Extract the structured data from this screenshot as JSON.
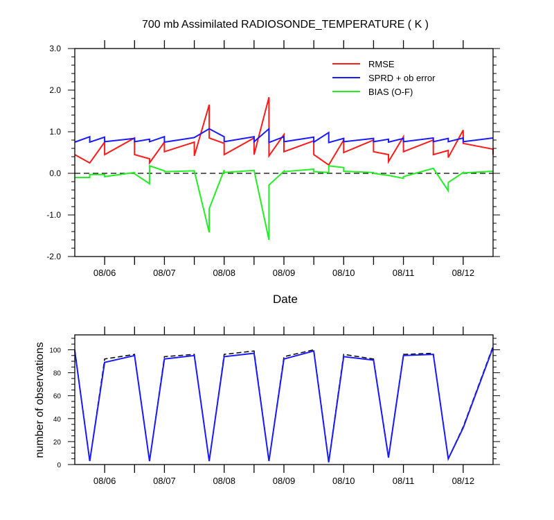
{
  "colors": {
    "rmse": "#ff1a1a",
    "spread": "#1a1aff",
    "bias": "#22ee22",
    "obs_possible": "#000000",
    "obs_used": "#1a1aff",
    "axis": "#000000"
  },
  "chart_data": [
    {
      "type": "line",
      "title": "700 mb Assimilated RADIOSONDE_TEMPERATURE ( K )",
      "xlabel": "Date",
      "ylabel": "",
      "xlim": [
        "08/05 12:00",
        "08/12 12:00"
      ],
      "ylim": [
        -2.0,
        3.0
      ],
      "x_ticks": [
        "08/06",
        "08/07",
        "08/08",
        "08/09",
        "08/10",
        "08/11",
        "08/12"
      ],
      "y_ticks": [
        "-2.0",
        "-1.0",
        "0.0",
        "1.0",
        "2.0",
        "3.0"
      ],
      "zero_line": "dashed",
      "legend_position": "top-right",
      "series": [
        {
          "name": "RMSE",
          "color_key": "rmse",
          "x": [
            "08/05 12:00",
            "08/05 18:00",
            "08/06 00:00",
            "08/06 00:00",
            "08/06 12:00",
            "08/06 12:00",
            "08/06 18:00",
            "08/06 18:00",
            "08/07 00:00",
            "08/07 00:00",
            "08/07 12:00",
            "08/07 12:00",
            "08/07 18:00",
            "08/07 18:00",
            "08/08 00:00",
            "08/08 00:00",
            "08/08 12:00",
            "08/08 12:00",
            "08/08 18:00",
            "08/08 18:00",
            "08/09 00:00",
            "08/09 00:00",
            "08/09 12:00",
            "08/09 12:00",
            "08/09 18:00",
            "08/10 00:00",
            "08/10 00:00",
            "08/10 12:00",
            "08/10 12:00",
            "08/10 18:00",
            "08/10 18:00",
            "08/11 00:00",
            "08/11 00:00",
            "08/11 12:00",
            "08/11 12:00",
            "08/11 18:00",
            "08/11 18:00",
            "08/12 00:00",
            "08/12 00:00",
            "08/12 12:00",
            "08/12 12:00"
          ],
          "y": [
            0.45,
            0.25,
            0.75,
            0.45,
            0.85,
            0.45,
            0.35,
            0.25,
            0.75,
            0.52,
            0.75,
            0.42,
            1.65,
            0.85,
            0.72,
            0.45,
            0.85,
            0.45,
            1.83,
            0.42,
            0.93,
            0.52,
            0.78,
            0.45,
            0.2,
            0.8,
            0.5,
            0.8,
            0.52,
            0.45,
            0.28,
            0.88,
            0.52,
            0.8,
            0.45,
            0.55,
            0.38,
            1.04,
            0.72,
            0.58,
            0.45
          ]
        },
        {
          "name": "SPRD + ob error",
          "color_key": "spread",
          "x": [
            "08/05 12:00",
            "08/05 18:00",
            "08/05 18:00",
            "08/06 00:00",
            "08/06 00:00",
            "08/06 12:00",
            "08/06 12:00",
            "08/06 18:00",
            "08/06 18:00",
            "08/07 00:00",
            "08/07 00:00",
            "08/07 12:00",
            "08/07 18:00",
            "08/08 00:00",
            "08/08 00:00",
            "08/08 12:00",
            "08/08 12:00",
            "08/08 18:00",
            "08/08 18:00",
            "08/09 00:00",
            "08/09 00:00",
            "08/09 12:00",
            "08/09 12:00",
            "08/09 18:00",
            "08/09 18:00",
            "08/10 00:00",
            "08/10 00:00",
            "08/10 12:00",
            "08/10 12:00",
            "08/10 18:00",
            "08/10 18:00",
            "08/11 00:00",
            "08/11 00:00",
            "08/11 12:00",
            "08/11 12:00",
            "08/11 18:00",
            "08/11 18:00",
            "08/12 00:00",
            "08/12 00:00",
            "08/12 12:00"
          ],
          "y": [
            0.75,
            0.88,
            0.75,
            0.87,
            0.76,
            0.84,
            0.76,
            0.82,
            0.76,
            0.88,
            0.75,
            0.86,
            1.07,
            0.88,
            0.76,
            0.88,
            0.76,
            1.07,
            0.74,
            0.88,
            0.76,
            0.87,
            0.75,
            0.98,
            0.74,
            0.84,
            0.76,
            0.84,
            0.76,
            0.82,
            0.75,
            0.84,
            0.76,
            0.85,
            0.76,
            0.84,
            0.76,
            0.85,
            0.76,
            0.85
          ]
        },
        {
          "name": "BIAS (O-F)",
          "color_key": "bias",
          "x": [
            "08/05 12:00",
            "08/05 18:00",
            "08/05 18:00",
            "08/06 00:00",
            "08/06 00:00",
            "08/06 12:00",
            "08/06 12:00",
            "08/06 18:00",
            "08/06 18:00",
            "08/07 00:00",
            "08/07 00:00",
            "08/07 12:00",
            "08/07 18:00",
            "08/07 18:00",
            "08/08 00:00",
            "08/08 00:00",
            "08/08 12:00",
            "08/08 18:00",
            "08/08 18:00",
            "08/09 00:00",
            "08/09 00:00",
            "08/09 12:00",
            "08/09 12:00",
            "08/09 18:00",
            "08/09 18:00",
            "08/10 00:00",
            "08/10 00:00",
            "08/10 12:00",
            "08/10 12:00",
            "08/10 18:00",
            "08/11 00:00",
            "08/11 00:00",
            "08/11 12:00",
            "08/11 18:00",
            "08/11 18:00",
            "08/12 00:00",
            "08/12 00:00",
            "08/12 12:00"
          ],
          "y": [
            -0.1,
            -0.1,
            -0.03,
            -0.03,
            -0.08,
            0.02,
            -0.01,
            -0.25,
            0.18,
            0.06,
            0.04,
            0.06,
            -1.42,
            -0.85,
            0.08,
            0.02,
            0.07,
            -1.6,
            -0.28,
            0.05,
            0.04,
            0.1,
            0.04,
            0.02,
            0.18,
            0.14,
            0.05,
            0.02,
            0.0,
            -0.05,
            -0.12,
            -0.08,
            0.12,
            -0.42,
            -0.22,
            0.02,
            0.01,
            0.05
          ]
        }
      ]
    },
    {
      "type": "line",
      "title": "",
      "xlabel": "",
      "ylabel": "number of observations",
      "xlim": [
        "08/05 12:00",
        "08/12 12:00"
      ],
      "ylim": [
        0,
        113
      ],
      "x_ticks": [
        "08/06",
        "08/07",
        "08/08",
        "08/09",
        "08/10",
        "08/11",
        "08/12"
      ],
      "y_ticks": [
        "0",
        "20",
        "40",
        "60",
        "80",
        "100"
      ],
      "series": [
        {
          "color_key": "obs_possible",
          "style": "dashed",
          "x": [
            "08/05 12:00",
            "08/05 18:00",
            "08/06 00:00",
            "08/06 12:00",
            "08/06 18:00",
            "08/07 00:00",
            "08/07 12:00",
            "08/07 18:00",
            "08/08 00:00",
            "08/08 12:00",
            "08/08 18:00",
            "08/09 00:00",
            "08/09 12:00",
            "08/09 18:00",
            "08/10 00:00",
            "08/10 12:00",
            "08/10 18:00",
            "08/11 00:00",
            "08/11 12:00",
            "08/11 18:00",
            "08/12 00:00",
            "08/12 12:00"
          ],
          "y": [
            100,
            3,
            92,
            96,
            3,
            94,
            96,
            3,
            96,
            99,
            3,
            94,
            100,
            3,
            96,
            92,
            7,
            96,
            97,
            5,
            33,
            103
          ]
        },
        {
          "color_key": "obs_used",
          "style": "solid",
          "x": [
            "08/05 12:00",
            "08/05 18:00",
            "08/06 00:00",
            "08/06 12:00",
            "08/06 18:00",
            "08/07 00:00",
            "08/07 12:00",
            "08/07 18:00",
            "08/08 00:00",
            "08/08 12:00",
            "08/08 18:00",
            "08/09 00:00",
            "08/09 12:00",
            "08/09 18:00",
            "08/10 00:00",
            "08/10 12:00",
            "08/10 18:00",
            "08/11 00:00",
            "08/11 12:00",
            "08/11 18:00",
            "08/12 00:00",
            "08/12 12:00"
          ],
          "y": [
            99,
            3,
            89,
            95,
            3,
            92,
            95,
            3,
            94,
            97,
            3,
            92,
            99,
            2,
            94,
            91,
            6,
            95,
            96,
            5,
            32,
            102
          ]
        }
      ]
    }
  ]
}
